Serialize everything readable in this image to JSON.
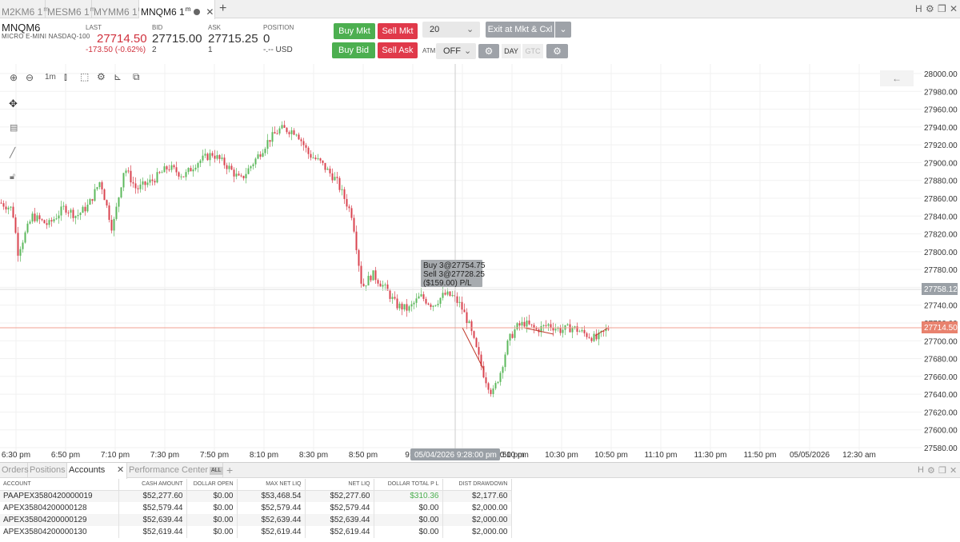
{
  "tabs": [
    {
      "label": "M2KM6 1",
      "sup": "m",
      "active": false
    },
    {
      "label": "MESM6 1",
      "sup": "m",
      "active": false
    },
    {
      "label": "MYMM6 1",
      "sup": "m",
      "active": false
    },
    {
      "label": "MNQM6 1",
      "sup": "m",
      "active": true
    }
  ],
  "tabbar_right": {
    "h": "H",
    "gear": "⚙",
    "window": "❐",
    "close": "✕"
  },
  "quote": {
    "symbol": "MNQM6",
    "description": "MICRO E-MINI NASDAQ-100",
    "last_label": "LAST",
    "last": "27714.50",
    "change": "-173.50 (-0.62%)",
    "bid_label": "BID",
    "bid": "27715.00",
    "bid_size": "2",
    "ask_label": "ASK",
    "ask": "27715.25",
    "ask_size": "1",
    "position_label": "POSITION",
    "position": "0",
    "position_pl": "-.-- USD"
  },
  "order_panel": {
    "buy_mkt": "Buy Mkt",
    "sell_mkt": "Sell Mkt",
    "buy_bid": "Buy Bid",
    "sell_ask": "Sell Ask",
    "quantity": "20",
    "exit_label": "Exit at Mkt & Cxl",
    "atm_label": "ATM",
    "atm_value": "OFF",
    "tif_day": "DAY",
    "tif_gtc": "GTC"
  },
  "toolbar": {
    "interval": "1m"
  },
  "chart": {
    "y_labels": [
      "28000.00",
      "27980.00",
      "27960.00",
      "27940.00",
      "27920.00",
      "27900.00",
      "27880.00",
      "27860.00",
      "27840.00",
      "27820.00",
      "27800.00",
      "27780.00",
      "27760.00",
      "27740.00",
      "27720.00",
      "27700.00",
      "27680.00",
      "27660.00",
      "27640.00",
      "27620.00",
      "27600.00",
      "27580.00"
    ],
    "x_labels": [
      "6:30 pm",
      "6:50 pm",
      "7:10 pm",
      "7:30 pm",
      "7:50 pm",
      "8:10 pm",
      "8:30 pm",
      "8:50 pm",
      "9:10",
      "",
      "10:10 pm",
      "10:30 pm",
      "10:50 pm",
      "11:10 pm",
      "11:30 pm",
      "11:50 pm",
      "05/05/2026",
      "12:30 am"
    ],
    "x_label_partial": ":50 pm",
    "crosshair_time": "05/04/2026 9:28:00 pm",
    "crosshair_price": "27758.12",
    "last_price_tag": "27714.50",
    "tooltip": [
      "Buy 3@27754.75",
      "Sell 3@27728.25",
      "($159.00) P/L"
    ],
    "colors": {
      "up": "#5cb85c",
      "down": "#d9434f",
      "last_line": "#f0a090",
      "last_tag": "#e8826e"
    }
  },
  "chart_data": {
    "type": "candlestick",
    "title": "",
    "ylim": [
      27580,
      28000
    ],
    "x_range": [
      "6:30 pm",
      "12:30 am"
    ],
    "last": 27714.5,
    "trade": {
      "buy": 27754.75,
      "sell": 27728.25,
      "qty": 3,
      "pl": -159.0
    }
  },
  "bottom": {
    "tabs": [
      "Orders",
      "Positions",
      "Accounts",
      "Performance Center"
    ],
    "all_badge": "ALL",
    "columns": [
      "ACCOUNT",
      "CASH AMOUNT",
      "DOLLAR OPEN",
      "MAX NET LIQ",
      "NET LIQ",
      "DOLLAR TOTAL P L",
      "DIST DRAWDOWN"
    ],
    "rows": [
      [
        "PAAPEX3580420000019",
        "$52,277.60",
        "$0.00",
        "$53,468.54",
        "$52,277.60",
        "$310.36",
        "$2,177.60"
      ],
      [
        "APEX35804200000128",
        "$52,579.44",
        "$0.00",
        "$52,579.44",
        "$52,579.44",
        "$0.00",
        "$2,000.00"
      ],
      [
        "APEX35804200000129",
        "$52,639.44",
        "$0.00",
        "$52,639.44",
        "$52,639.44",
        "$0.00",
        "$2,000.00"
      ],
      [
        "APEX35804200000130",
        "$52,619.44",
        "$0.00",
        "$52,619.44",
        "$52,619.44",
        "$0.00",
        "$2,000.00"
      ]
    ]
  }
}
